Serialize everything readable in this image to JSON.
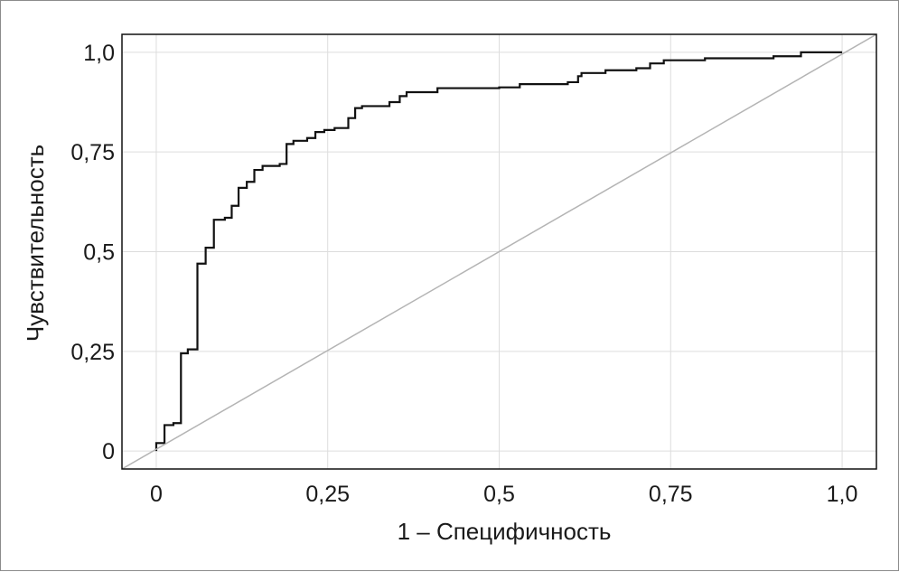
{
  "chart_data": {
    "type": "line",
    "title": "",
    "xlabel": "1 – Специфичность",
    "ylabel": "Чувствительность",
    "xlim": [
      -0.05,
      1.05
    ],
    "ylim": [
      -0.045,
      1.045
    ],
    "grid": true,
    "x_ticks": [
      0,
      0.25,
      0.5,
      0.75,
      1.0
    ],
    "x_tick_labels": [
      "0",
      "0,25",
      "0,5",
      "0,75",
      "1,0"
    ],
    "y_ticks": [
      0,
      0.25,
      0.5,
      0.75,
      1.0
    ],
    "y_tick_labels": [
      "0",
      "0,25",
      "0,5",
      "0,75",
      "1,0"
    ],
    "colors": {
      "roc": "#111111",
      "reference": "#b4b4b4",
      "grid": "#dddddd",
      "frame": "#111111"
    },
    "series": [
      {
        "style": "step",
        "points": [
          [
            0.0,
            0.0
          ],
          [
            0.0,
            0.02
          ],
          [
            0.012,
            0.02
          ],
          [
            0.012,
            0.065
          ],
          [
            0.025,
            0.065
          ],
          [
            0.025,
            0.07
          ],
          [
            0.036,
            0.07
          ],
          [
            0.036,
            0.245
          ],
          [
            0.046,
            0.245
          ],
          [
            0.046,
            0.255
          ],
          [
            0.06,
            0.255
          ],
          [
            0.06,
            0.47
          ],
          [
            0.072,
            0.47
          ],
          [
            0.072,
            0.51
          ],
          [
            0.084,
            0.51
          ],
          [
            0.084,
            0.58
          ],
          [
            0.1,
            0.58
          ],
          [
            0.1,
            0.585
          ],
          [
            0.11,
            0.585
          ],
          [
            0.11,
            0.615
          ],
          [
            0.12,
            0.615
          ],
          [
            0.12,
            0.66
          ],
          [
            0.132,
            0.66
          ],
          [
            0.132,
            0.675
          ],
          [
            0.143,
            0.675
          ],
          [
            0.143,
            0.705
          ],
          [
            0.155,
            0.705
          ],
          [
            0.155,
            0.715
          ],
          [
            0.18,
            0.715
          ],
          [
            0.18,
            0.72
          ],
          [
            0.19,
            0.72
          ],
          [
            0.19,
            0.77
          ],
          [
            0.2,
            0.77
          ],
          [
            0.2,
            0.778
          ],
          [
            0.22,
            0.778
          ],
          [
            0.22,
            0.785
          ],
          [
            0.232,
            0.785
          ],
          [
            0.232,
            0.8
          ],
          [
            0.245,
            0.8
          ],
          [
            0.245,
            0.805
          ],
          [
            0.26,
            0.805
          ],
          [
            0.26,
            0.81
          ],
          [
            0.28,
            0.81
          ],
          [
            0.28,
            0.835
          ],
          [
            0.29,
            0.835
          ],
          [
            0.29,
            0.86
          ],
          [
            0.3,
            0.86
          ],
          [
            0.3,
            0.865
          ],
          [
            0.34,
            0.865
          ],
          [
            0.34,
            0.875
          ],
          [
            0.355,
            0.875
          ],
          [
            0.355,
            0.89
          ],
          [
            0.365,
            0.89
          ],
          [
            0.365,
            0.9
          ],
          [
            0.41,
            0.9
          ],
          [
            0.41,
            0.91
          ],
          [
            0.5,
            0.91
          ],
          [
            0.5,
            0.912
          ],
          [
            0.53,
            0.912
          ],
          [
            0.53,
            0.92
          ],
          [
            0.6,
            0.92
          ],
          [
            0.6,
            0.925
          ],
          [
            0.615,
            0.925
          ],
          [
            0.615,
            0.94
          ],
          [
            0.62,
            0.94
          ],
          [
            0.62,
            0.948
          ],
          [
            0.655,
            0.948
          ],
          [
            0.655,
            0.955
          ],
          [
            0.7,
            0.955
          ],
          [
            0.7,
            0.96
          ],
          [
            0.72,
            0.96
          ],
          [
            0.72,
            0.972
          ],
          [
            0.74,
            0.972
          ],
          [
            0.74,
            0.98
          ],
          [
            0.8,
            0.98
          ],
          [
            0.8,
            0.985
          ],
          [
            0.9,
            0.985
          ],
          [
            0.9,
            0.99
          ],
          [
            0.94,
            0.99
          ],
          [
            0.94,
            1.0
          ],
          [
            1.0,
            1.0
          ]
        ]
      },
      {
        "style": "line",
        "points": [
          [
            -0.05,
            -0.045
          ],
          [
            1.05,
            1.045
          ]
        ]
      }
    ]
  }
}
